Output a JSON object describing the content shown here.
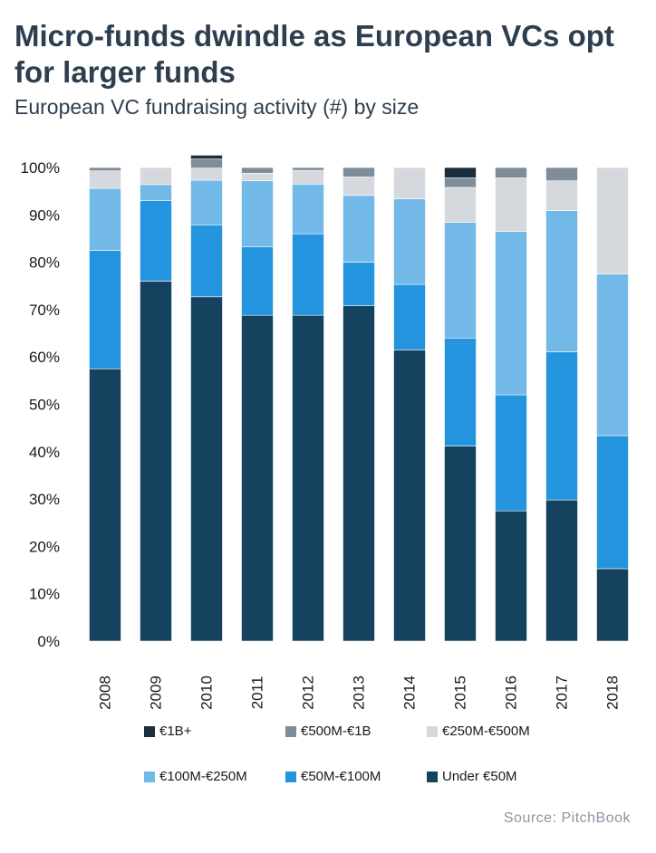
{
  "header": {
    "title": "Micro-funds dwindle as European VCs opt for larger funds",
    "subtitle": "European VC fundraising activity (#) by size"
  },
  "source": "Source: PitchBook",
  "chart_data": {
    "type": "bar",
    "stacked": true,
    "title": "Micro-funds dwindle as European VCs opt for larger funds",
    "subtitle": "European VC fundraising activity (#) by size",
    "xlabel": "",
    "ylabel": "",
    "ylim": [
      0,
      100
    ],
    "yticks": [
      "0%",
      "10%",
      "20%",
      "30%",
      "40%",
      "50%",
      "60%",
      "70%",
      "80%",
      "90%",
      "100%"
    ],
    "grid": false,
    "legend_position": "bottom",
    "categories": [
      "2008",
      "2009",
      "2010",
      "2011",
      "2012",
      "2013",
      "2014",
      "2015",
      "2016",
      "2017",
      "2018"
    ],
    "series": [
      {
        "name": "Under €50M",
        "color": "#14425f",
        "values": [
          57.5,
          76,
          72.7,
          68.8,
          68.8,
          70.8,
          61.5,
          41.2,
          27.5,
          29.8,
          15.3
        ]
      },
      {
        "name": "€50M-€100M",
        "color": "#2394dd",
        "values": [
          25,
          17,
          15.2,
          14.5,
          17.2,
          9.2,
          13.8,
          22.8,
          24.5,
          31.3,
          28.1
        ]
      },
      {
        "name": "€100M-€250M",
        "color": "#72b9e8",
        "values": [
          13.1,
          3.4,
          9.4,
          13.9,
          10.5,
          14.1,
          18.1,
          24.4,
          34.5,
          29.8,
          34.1
        ]
      },
      {
        "name": "€250M-€500M",
        "color": "#d5d9de",
        "values": [
          3.7,
          3.6,
          2.6,
          1.6,
          2.9,
          3.9,
          6.6,
          7.4,
          11.3,
          6.3,
          22.5
        ]
      },
      {
        "name": "€500M-€1B",
        "color": "#7f8d99",
        "values": [
          0.7,
          0,
          1.9,
          1.2,
          0.6,
          2,
          0,
          2,
          2.2,
          2.8,
          0
        ]
      },
      {
        "name": "€1B+",
        "color": "#1c2d3d",
        "values": [
          0,
          0,
          0.8,
          0,
          0,
          0,
          0,
          2.2,
          0,
          0,
          0
        ]
      }
    ]
  }
}
